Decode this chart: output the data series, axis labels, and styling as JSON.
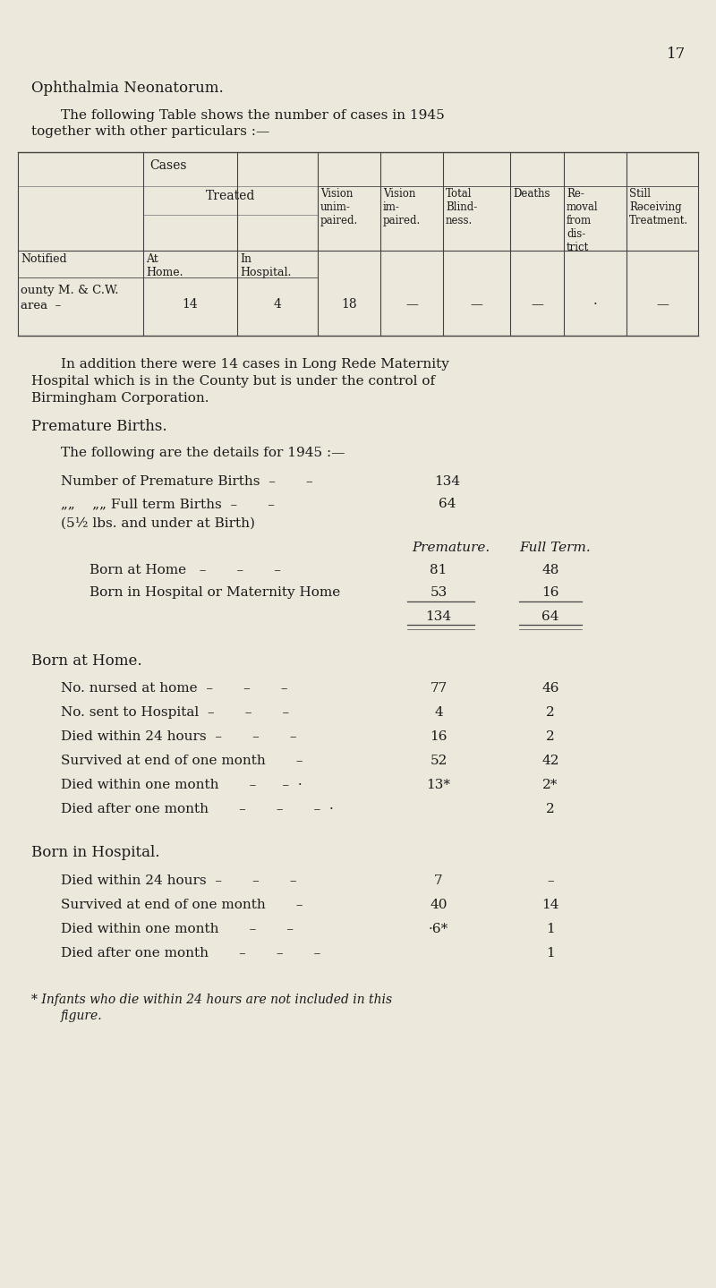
{
  "bg_color": "#ede8dc",
  "text_color": "#1a1a1a",
  "page_number": "17",
  "title": "Ophthalmia Neonatorum.",
  "intro_line1": "The following Table shows the number of cases in 1945",
  "intro_line2": "together with other particulars :—",
  "addition_line1": "In addition there were 14 cases in Long Rede Maternity",
  "addition_line2": "Hospital which is in the County but is under the control of",
  "addition_line3": "Birmingham Corporation.",
  "premature_title": "Premature Births.",
  "details_intro": "The following are the details for 1945 :—",
  "footnote_line1": "* Infants who die within 24 hours are not included in this",
  "footnote_line2": "        figure."
}
